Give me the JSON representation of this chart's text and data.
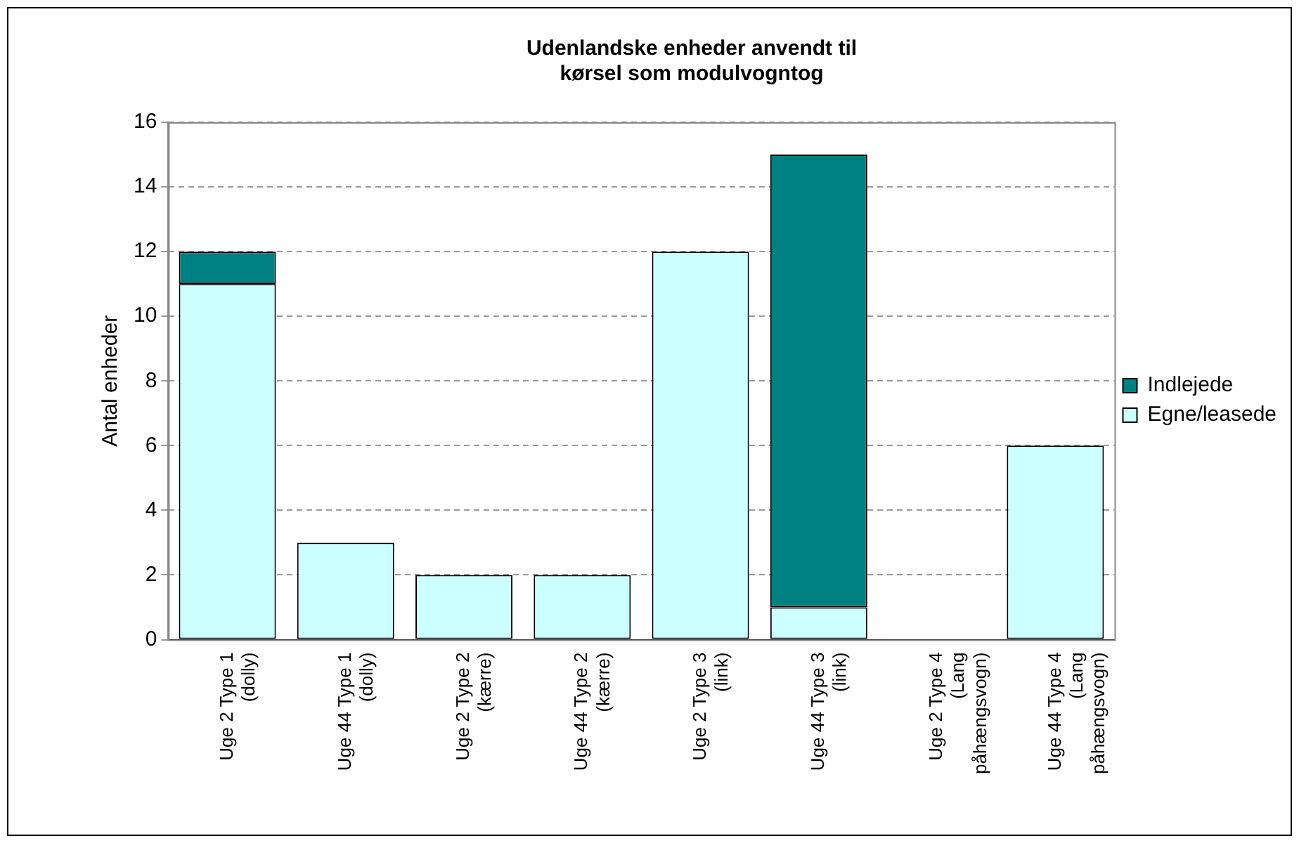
{
  "chart_data": {
    "type": "bar",
    "title": "Udenlandske enheder anvendt til\nkørsel som modulvogntog",
    "ylabel": "Antal enheder",
    "categories": [
      "Uge 2 Type 1\n(dolly)",
      "Uge 44 Type 1\n(dolly)",
      "Uge 2 Type 2\n(kærre)",
      "Uge 44 Type 2\n(kærre)",
      "Uge 2 Type 3\n(link)",
      "Uge 44 Type 3\n(link)",
      "Uge 2 Type 4\n(Lang\npåhængsvogn)",
      "Uge 44 Type 4\n(Lang\npåhængsvogn)"
    ],
    "series": [
      {
        "name": "Egne/leasede",
        "color": "#ccffff",
        "values": [
          11,
          3,
          2,
          2,
          12,
          1,
          0,
          6
        ]
      },
      {
        "name": "Indlejede",
        "color": "#008080",
        "values": [
          1,
          0,
          0,
          0,
          0,
          14,
          0,
          0
        ]
      }
    ],
    "stacked": true,
    "ylim": [
      0,
      16
    ],
    "yticks": [
      0,
      2,
      4,
      6,
      8,
      10,
      12,
      14,
      16
    ],
    "grid": "y",
    "legend": "right"
  }
}
